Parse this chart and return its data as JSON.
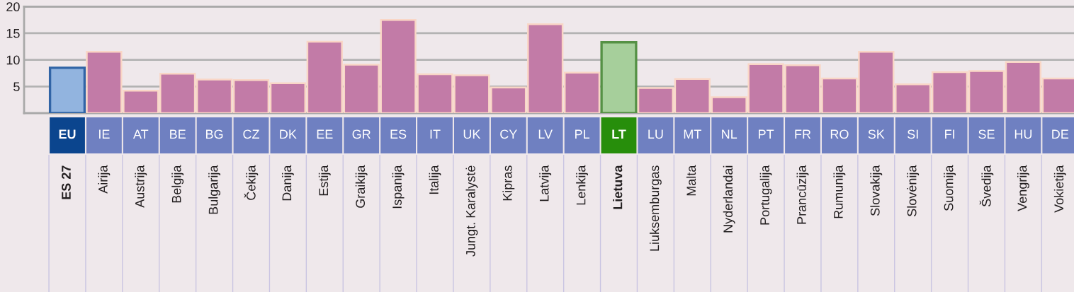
{
  "chart_data": {
    "type": "bar",
    "categories": [
      "ES 27\nEU",
      "Airija\nIE",
      "Austrija\nAT",
      "Belgija\nBE",
      "Bulgarija\nBG",
      "Čekija\nCZ",
      "Danija\nDK",
      "Estija\nEE",
      "Graikija\nGR",
      "Ispanija\nES",
      "Italija\nIT",
      "Jungt. Karalystė\nUK",
      "Kipras\nCY",
      "Latvija\nLV",
      "Lenkija\nPL",
      "Lietuva\nLT",
      "Liuksemburgas\nLU",
      "Malta\nMT",
      "Nyderlandai\nNL",
      "Portugalija\nPT",
      "Prancūzija\nFR",
      "Rumunija\nRO",
      "Slovakija\nSK",
      "Slovėnija\nSI",
      "Suomija\nFI",
      "Švedija\nSE",
      "Vengrija\nHU",
      "Vokietija\nDE"
    ],
    "values": [
      8.5,
      11.5,
      4.2,
      7.4,
      6.3,
      6.2,
      5.6,
      13.4,
      9.1,
      17.5,
      7.3,
      7.1,
      4.8,
      16.7,
      7.6,
      13.3,
      4.7,
      6.4,
      3.0,
      9.2,
      9.0,
      6.5,
      11.5,
      5.4,
      7.7,
      7.9,
      9.6,
      6.5
    ],
    "colors": [
      "#92b4df",
      "#c27ba7",
      "#c27ba7",
      "#c27ba7",
      "#c27ba7",
      "#c27ba7",
      "#c27ba7",
      "#c27ba7",
      "#c27ba7",
      "#c27ba7",
      "#c27ba7",
      "#c27ba7",
      "#c27ba7",
      "#c27ba7",
      "#c27ba7",
      "#a6cf9b",
      "#c27ba7",
      "#c27ba7",
      "#c27ba7",
      "#c27ba7",
      "#c27ba7",
      "#c27ba7",
      "#c27ba7",
      "#c27ba7",
      "#c27ba7",
      "#c27ba7",
      "#c27ba7",
      "#c27ba7"
    ],
    "ylim": [
      0,
      20
    ],
    "yticks": [
      5,
      10,
      15,
      20
    ],
    "grid": "y"
  }
}
